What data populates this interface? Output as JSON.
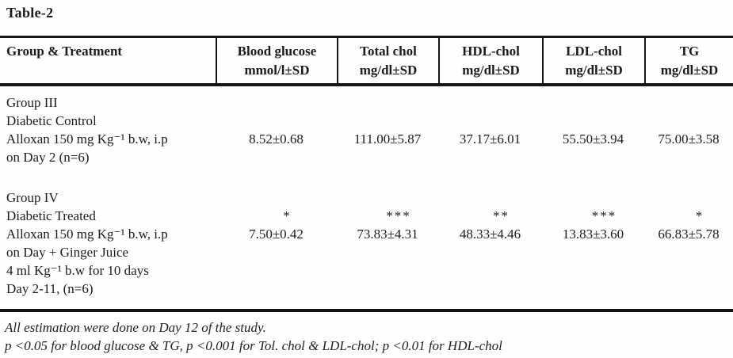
{
  "page": {
    "title": "Table-2",
    "background_color": "#fefefe",
    "text_color": "#1c1c1c",
    "rule_color": "#161616"
  },
  "table": {
    "header": {
      "col0": "Group & Treatment",
      "cols": [
        {
          "line1": "Blood glucose",
          "line2": "mmol/l±SD"
        },
        {
          "line1": "Total chol",
          "line2": "mg/dl±SD"
        },
        {
          "line1": "HDL-chol",
          "line2": "mg/dl±SD"
        },
        {
          "line1": "LDL-chol",
          "line2": "mg/dl±SD"
        },
        {
          "line1": "TG",
          "line2": "mg/dl±SD"
        }
      ]
    },
    "groups": [
      {
        "id": "group-3",
        "label_lines": [
          "Group III",
          "Diabetic Control",
          "Alloxan 150 mg Kg⁻¹ b.w, i.p",
          "on Day 2 (n=6)"
        ],
        "significance": [
          "",
          "",
          "",
          "",
          ""
        ],
        "values": [
          "8.52±0.68",
          "111.00±5.87",
          "37.17±6.01",
          "55.50±3.94",
          "75.00±3.58"
        ]
      },
      {
        "id": "group-4",
        "label_lines": [
          "Group IV",
          "Diabetic Treated",
          "Alloxan 150 mg Kg⁻¹ b.w, i.p",
          "on Day + Ginger Juice",
          "4 ml Kg⁻¹ b.w for 10 days",
          "Day 2-11, (n=6)"
        ],
        "significance": [
          "*",
          "***",
          "**",
          "***",
          "*"
        ],
        "values": [
          "7.50±0.42",
          "73.83±4.31",
          "48.33±4.46",
          "13.83±3.60",
          "66.83±5.78"
        ]
      }
    ]
  },
  "footnotes": [
    "All estimation were done on Day 12 of the study.",
    "p <0.05 for blood glucose & TG, p <0.001 for Tol. chol & LDL-chol; p <0.01 for HDL-chol"
  ]
}
